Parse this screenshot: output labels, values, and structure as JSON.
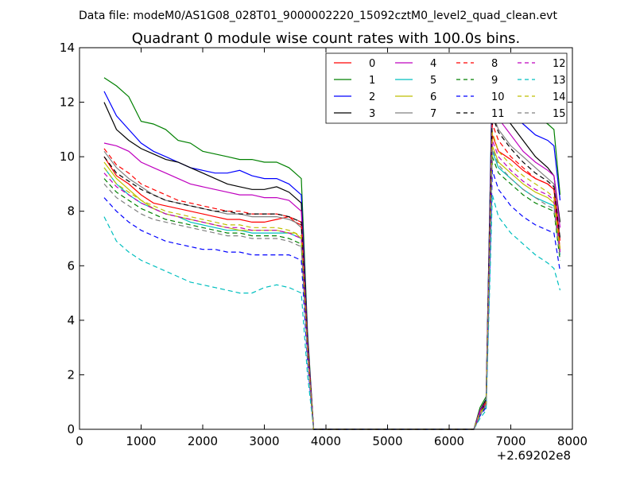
{
  "chart_data": {
    "type": "line",
    "suptitle": "Data file: modeM0/AS1G08_028T01_9000002220_15092cztM0_level2_quad_clean.evt",
    "title": "Quadrant 0 module wise count rates with 100.0s bins.",
    "xlabel": "",
    "ylabel": "",
    "xlim": [
      0,
      8000
    ],
    "ylim": [
      0,
      14
    ],
    "x_ticks": [
      "0",
      "1000",
      "2000",
      "3000",
      "4000",
      "5000",
      "6000",
      "7000",
      "8000"
    ],
    "y_ticks": [
      "0",
      "2",
      "4",
      "6",
      "8",
      "10",
      "12",
      "14"
    ],
    "x_offset_label": "+2.69202e8",
    "grid": false,
    "legend_position": "top-right",
    "legend_columns": 4,
    "x": [
      400,
      600,
      800,
      1000,
      1200,
      1400,
      1600,
      1800,
      2000,
      2200,
      2400,
      2600,
      2800,
      3000,
      3200,
      3400,
      3500,
      3600,
      3700,
      3800,
      4200,
      5000,
      6000,
      6400,
      6500,
      6600,
      6700,
      6800,
      7000,
      7200,
      7400,
      7600,
      7700,
      7800
    ],
    "series": [
      {
        "name": "0",
        "color": "#ff0000",
        "dash": "solid",
        "values": [
          10.0,
          9.3,
          9.0,
          8.6,
          8.3,
          8.2,
          8.1,
          8.0,
          7.9,
          7.8,
          7.7,
          7.7,
          7.6,
          7.6,
          7.7,
          7.8,
          7.6,
          7.5,
          3.0,
          0.0,
          0.0,
          0.0,
          0.0,
          0.0,
          0.6,
          1.0,
          10.8,
          10.2,
          9.9,
          9.5,
          9.2,
          9.0,
          8.8,
          6.6
        ]
      },
      {
        "name": "1",
        "color": "#008000",
        "dash": "solid",
        "values": [
          12.9,
          12.6,
          12.2,
          11.3,
          11.2,
          11.0,
          10.6,
          10.5,
          10.2,
          10.1,
          10.0,
          9.9,
          9.9,
          9.8,
          9.8,
          9.6,
          9.4,
          9.2,
          3.6,
          0.0,
          0.0,
          0.0,
          0.0,
          0.0,
          0.8,
          1.2,
          13.0,
          12.5,
          12.4,
          11.8,
          11.5,
          11.2,
          11.0,
          8.6
        ]
      },
      {
        "name": "2",
        "color": "#0000ff",
        "dash": "solid",
        "values": [
          12.4,
          11.5,
          11.0,
          10.5,
          10.2,
          10.0,
          9.8,
          9.6,
          9.5,
          9.4,
          9.4,
          9.5,
          9.3,
          9.2,
          9.2,
          9.0,
          8.8,
          8.6,
          3.4,
          0.0,
          0.0,
          0.0,
          0.0,
          0.0,
          0.7,
          1.1,
          12.9,
          12.2,
          11.6,
          11.2,
          10.8,
          10.6,
          10.4,
          8.4
        ]
      },
      {
        "name": "3",
        "color": "#000000",
        "dash": "solid",
        "values": [
          12.0,
          11.0,
          10.6,
          10.3,
          10.1,
          9.9,
          9.8,
          9.6,
          9.4,
          9.2,
          9.0,
          8.9,
          8.8,
          8.8,
          8.9,
          8.7,
          8.5,
          8.3,
          3.3,
          0.0,
          0.0,
          0.0,
          0.0,
          0.0,
          0.7,
          1.1,
          12.5,
          11.8,
          11.2,
          10.6,
          10.0,
          9.6,
          9.3,
          7.6
        ]
      },
      {
        "name": "4",
        "color": "#bf00bf",
        "dash": "solid",
        "values": [
          10.5,
          10.4,
          10.2,
          9.8,
          9.6,
          9.4,
          9.2,
          9.0,
          8.9,
          8.8,
          8.7,
          8.6,
          8.6,
          8.5,
          8.5,
          8.4,
          8.2,
          8.0,
          3.2,
          0.0,
          0.0,
          0.0,
          0.0,
          0.0,
          0.7,
          1.0,
          12.1,
          11.4,
          10.8,
          10.2,
          9.8,
          9.5,
          9.3,
          7.4
        ]
      },
      {
        "name": "5",
        "color": "#00bfbf",
        "dash": "solid",
        "values": [
          9.6,
          9.0,
          8.6,
          8.3,
          8.1,
          7.9,
          7.8,
          7.6,
          7.5,
          7.4,
          7.3,
          7.3,
          7.2,
          7.2,
          7.2,
          7.2,
          7.1,
          7.0,
          2.8,
          0.0,
          0.0,
          0.0,
          0.0,
          0.0,
          0.6,
          0.9,
          10.2,
          9.6,
          9.2,
          8.8,
          8.5,
          8.3,
          8.2,
          6.4
        ]
      },
      {
        "name": "6",
        "color": "#bfbf00",
        "dash": "solid",
        "values": [
          9.8,
          9.2,
          8.8,
          8.4,
          8.1,
          7.9,
          7.8,
          7.7,
          7.6,
          7.5,
          7.4,
          7.3,
          7.3,
          7.3,
          7.3,
          7.2,
          7.2,
          7.0,
          2.8,
          0.0,
          0.0,
          0.0,
          0.0,
          0.0,
          0.6,
          0.9,
          10.4,
          9.8,
          9.4,
          9.0,
          8.7,
          8.5,
          8.3,
          6.5
        ]
      },
      {
        "name": "7",
        "color": "#808080",
        "dash": "solid",
        "values": [
          10.2,
          9.6,
          9.2,
          8.9,
          8.6,
          8.4,
          8.3,
          8.2,
          8.1,
          8.0,
          7.9,
          7.9,
          7.8,
          7.8,
          7.8,
          7.7,
          7.6,
          7.4,
          3.0,
          0.0,
          0.0,
          0.0,
          0.0,
          0.0,
          0.6,
          1.0,
          11.6,
          11.0,
          10.4,
          10.0,
          9.6,
          9.2,
          9.0,
          7.0
        ]
      },
      {
        "name": "8",
        "color": "#ff0000",
        "dash": "dashed",
        "values": [
          10.3,
          9.7,
          9.4,
          9.0,
          8.8,
          8.6,
          8.4,
          8.3,
          8.2,
          8.1,
          8.0,
          8.0,
          7.9,
          7.9,
          7.9,
          7.8,
          7.7,
          7.6,
          3.1,
          0.0,
          0.0,
          0.0,
          0.0,
          0.0,
          0.6,
          1.0,
          11.2,
          10.6,
          10.0,
          9.6,
          9.2,
          9.0,
          8.8,
          6.9
        ]
      },
      {
        "name": "9",
        "color": "#008000",
        "dash": "dashed",
        "values": [
          9.2,
          8.7,
          8.4,
          8.1,
          7.9,
          7.7,
          7.6,
          7.5,
          7.4,
          7.3,
          7.2,
          7.2,
          7.1,
          7.1,
          7.1,
          7.0,
          6.9,
          6.8,
          2.7,
          0.0,
          0.0,
          0.0,
          0.0,
          0.0,
          0.5,
          0.9,
          10.0,
          9.4,
          9.0,
          8.6,
          8.3,
          8.1,
          8.0,
          6.2
        ]
      },
      {
        "name": "10",
        "color": "#0000ff",
        "dash": "dashed",
        "values": [
          8.5,
          8.0,
          7.6,
          7.3,
          7.1,
          6.9,
          6.8,
          6.7,
          6.6,
          6.6,
          6.5,
          6.5,
          6.4,
          6.4,
          6.4,
          6.4,
          6.3,
          6.2,
          2.5,
          0.0,
          0.0,
          0.0,
          0.0,
          0.0,
          0.5,
          0.8,
          9.5,
          8.8,
          8.2,
          7.8,
          7.5,
          7.3,
          7.2,
          5.8
        ]
      },
      {
        "name": "11",
        "color": "#000000",
        "dash": "dashed",
        "values": [
          10.0,
          9.4,
          9.1,
          8.8,
          8.6,
          8.4,
          8.3,
          8.2,
          8.1,
          8.0,
          8.0,
          7.9,
          7.9,
          7.9,
          7.9,
          7.8,
          7.7,
          7.6,
          3.0,
          0.0,
          0.0,
          0.0,
          0.0,
          0.0,
          0.6,
          1.0,
          11.5,
          10.9,
          10.3,
          9.8,
          9.4,
          9.1,
          8.9,
          7.0
        ]
      },
      {
        "name": "12",
        "color": "#bf00bf",
        "dash": "dashed",
        "values": [
          9.4,
          8.9,
          8.6,
          8.3,
          8.1,
          7.9,
          7.8,
          7.7,
          7.6,
          7.5,
          7.4,
          7.4,
          7.3,
          7.3,
          7.3,
          7.2,
          7.1,
          7.0,
          2.8,
          0.0,
          0.0,
          0.0,
          0.0,
          0.0,
          0.6,
          0.9,
          10.6,
          10.0,
          9.5,
          9.1,
          8.8,
          8.6,
          8.4,
          6.5
        ]
      },
      {
        "name": "13",
        "color": "#00bfbf",
        "dash": "dashed",
        "values": [
          7.8,
          6.9,
          6.5,
          6.2,
          6.0,
          5.8,
          5.6,
          5.4,
          5.3,
          5.2,
          5.1,
          5.0,
          5.0,
          5.2,
          5.3,
          5.2,
          5.1,
          5.0,
          2.0,
          0.0,
          0.0,
          0.0,
          0.0,
          0.0,
          0.4,
          0.7,
          8.6,
          7.8,
          7.2,
          6.8,
          6.4,
          6.1,
          5.9,
          5.1
        ]
      },
      {
        "name": "14",
        "color": "#bfbf00",
        "dash": "dashed",
        "values": [
          9.6,
          9.0,
          8.7,
          8.4,
          8.2,
          8.0,
          7.9,
          7.8,
          7.7,
          7.6,
          7.5,
          7.5,
          7.4,
          7.4,
          7.4,
          7.3,
          7.2,
          7.1,
          2.8,
          0.0,
          0.0,
          0.0,
          0.0,
          0.0,
          0.6,
          0.9,
          10.9,
          10.2,
          9.7,
          9.3,
          9.0,
          8.7,
          8.5,
          6.6
        ]
      },
      {
        "name": "15",
        "color": "#808080",
        "dash": "dashed",
        "values": [
          9.0,
          8.5,
          8.2,
          7.9,
          7.7,
          7.6,
          7.5,
          7.4,
          7.3,
          7.2,
          7.1,
          7.1,
          7.0,
          7.0,
          7.0,
          6.9,
          6.8,
          6.7,
          2.7,
          0.0,
          0.0,
          0.0,
          0.0,
          0.0,
          0.5,
          0.9,
          10.3,
          9.7,
          9.2,
          8.8,
          8.5,
          8.2,
          8.1,
          6.3
        ]
      }
    ]
  }
}
